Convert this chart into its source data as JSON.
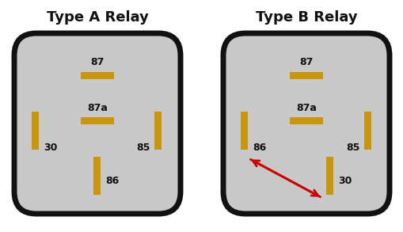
{
  "bg_color": "#ffffff",
  "box_color": "#c8c8c8",
  "box_edge_color": "#111111",
  "pin_color": "#c8960c",
  "text_color": "#111111",
  "title_A": "Type A Relay",
  "title_B": "Type B Relay",
  "title_fontsize": 13,
  "label_fontsize": 9,
  "arrow_color": "#cc0000"
}
